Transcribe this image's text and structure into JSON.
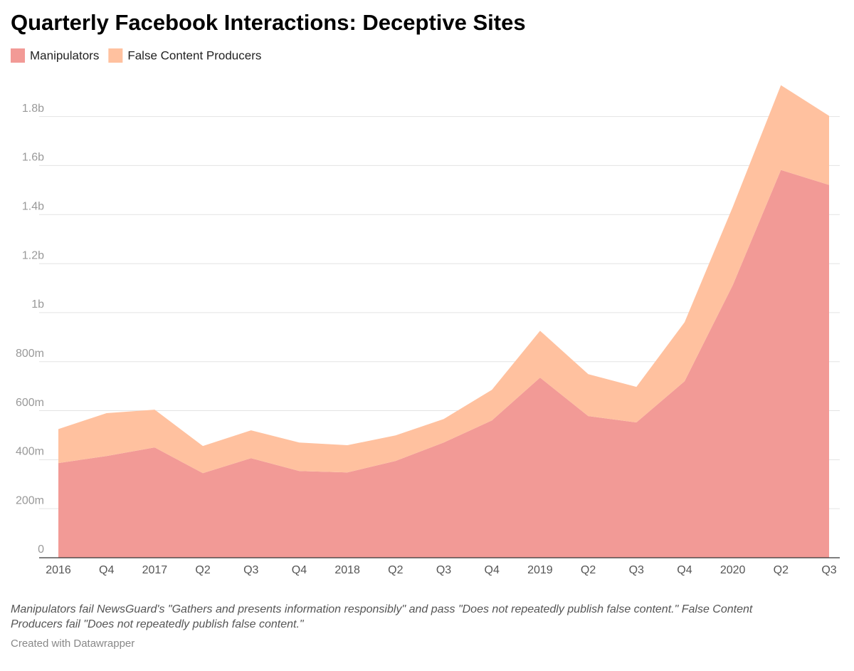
{
  "chart_data": {
    "type": "stacked_area",
    "title": "Quarterly Facebook Interactions: Deceptive Sites",
    "categories": [
      "2016",
      "Q4",
      "2017",
      "Q2",
      "Q3",
      "Q4",
      "2018",
      "Q2",
      "Q3",
      "Q4",
      "2019",
      "Q2",
      "Q3",
      "Q4",
      "2020",
      "Q2",
      "Q3"
    ],
    "series": [
      {
        "name": "Manipulators",
        "color": "#f29a96",
        "values": [
          386,
          415,
          450,
          345,
          406,
          354,
          348,
          395,
          470,
          560,
          735,
          578,
          552,
          720,
          1112,
          1582,
          1521
        ]
      },
      {
        "name": "False Content Producers",
        "color": "#ffc19f",
        "values": [
          139,
          175,
          154,
          111,
          114,
          116,
          111,
          104,
          96,
          125,
          191,
          171,
          145,
          241,
          319,
          346,
          282
        ]
      }
    ],
    "ylim": [
      0,
      1950
    ],
    "yticks": [
      0,
      {
        "value": 200,
        "label": "200m"
      },
      {
        "value": 400,
        "label": "400m"
      },
      {
        "value": 600,
        "label": "600m"
      },
      {
        "value": 800,
        "label": "800m"
      },
      {
        "value": 1000,
        "label": "1b"
      },
      {
        "value": 1200,
        "label": "1.2b"
      },
      {
        "value": 1400,
        "label": "1.4b"
      },
      {
        "value": 1600,
        "label": "1.6b"
      },
      {
        "value": 1800,
        "label": "1.8b"
      }
    ],
    "grid": true,
    "legend": "top-left",
    "notes": [
      "Manipulators fail NewsGuard's \"Gathers and presents information responsibly\" and pass \"Does not repeatedly publish false content.\" False Content",
      "Producers fail \"Does not repeatedly publish false content.\""
    ],
    "credit": "Created with Datawrapper"
  }
}
